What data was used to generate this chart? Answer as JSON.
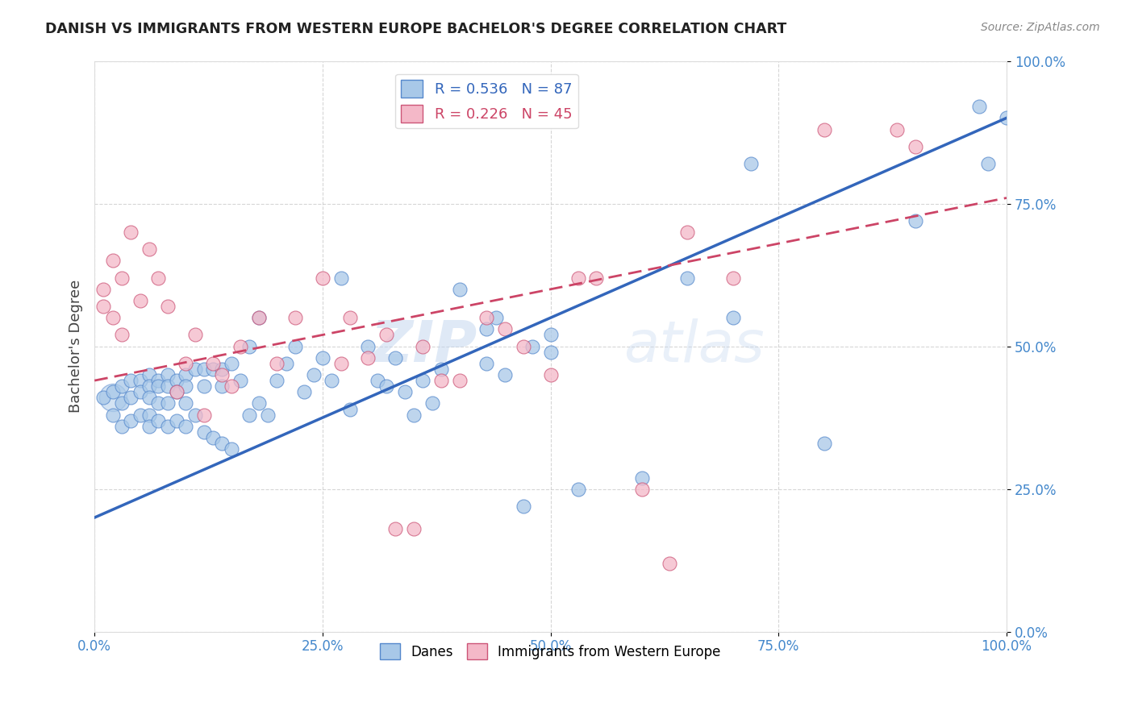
{
  "title": "DANISH VS IMMIGRANTS FROM WESTERN EUROPE BACHELOR'S DEGREE CORRELATION CHART",
  "source": "Source: ZipAtlas.com",
  "ylabel": "Bachelor's Degree",
  "xlim": [
    0,
    1
  ],
  "ylim": [
    0,
    1
  ],
  "xticks": [
    0.0,
    0.25,
    0.5,
    0.75,
    1.0
  ],
  "yticks": [
    0.0,
    0.25,
    0.5,
    0.75,
    1.0
  ],
  "xtick_labels": [
    "0.0%",
    "25.0%",
    "50.0%",
    "75.0%",
    "100.0%"
  ],
  "ytick_labels": [
    "0.0%",
    "25.0%",
    "50.0%",
    "75.0%",
    "100.0%"
  ],
  "blue_face_color": "#a8c8e8",
  "blue_edge_color": "#5588cc",
  "pink_face_color": "#f4b8c8",
  "pink_edge_color": "#cc5577",
  "blue_line_color": "#3366bb",
  "pink_line_color": "#cc4466",
  "blue_R": 0.536,
  "blue_N": 87,
  "pink_R": 0.226,
  "pink_N": 45,
  "legend1_label": "Danes",
  "legend2_label": "Immigrants from Western Europe",
  "watermark_zip": "ZIP",
  "watermark_atlas": "atlas",
  "blue_line_x0": 0.0,
  "blue_line_y0": 0.2,
  "blue_line_x1": 1.0,
  "blue_line_y1": 0.9,
  "pink_line_x0": 0.0,
  "pink_line_y0": 0.44,
  "pink_line_x1": 1.0,
  "pink_line_y1": 0.76,
  "blue_scatter_x": [
    0.01,
    0.02,
    0.02,
    0.03,
    0.03,
    0.03,
    0.04,
    0.04,
    0.04,
    0.05,
    0.05,
    0.05,
    0.06,
    0.06,
    0.06,
    0.06,
    0.06,
    0.07,
    0.07,
    0.07,
    0.07,
    0.08,
    0.08,
    0.08,
    0.08,
    0.09,
    0.09,
    0.09,
    0.1,
    0.1,
    0.1,
    0.1,
    0.11,
    0.11,
    0.12,
    0.12,
    0.12,
    0.13,
    0.13,
    0.14,
    0.14,
    0.14,
    0.15,
    0.15,
    0.16,
    0.17,
    0.17,
    0.18,
    0.18,
    0.19,
    0.2,
    0.21,
    0.22,
    0.23,
    0.24,
    0.25,
    0.26,
    0.27,
    0.28,
    0.3,
    0.31,
    0.32,
    0.33,
    0.34,
    0.35,
    0.36,
    0.37,
    0.38,
    0.4,
    0.43,
    0.43,
    0.44,
    0.45,
    0.47,
    0.48,
    0.5,
    0.5,
    0.53,
    0.6,
    0.65,
    0.7,
    0.72,
    0.8,
    0.9,
    0.97,
    0.98,
    1.0
  ],
  "blue_scatter_y": [
    0.41,
    0.42,
    0.38,
    0.43,
    0.4,
    0.36,
    0.44,
    0.41,
    0.37,
    0.44,
    0.42,
    0.38,
    0.45,
    0.43,
    0.41,
    0.38,
    0.36,
    0.44,
    0.43,
    0.4,
    0.37,
    0.45,
    0.43,
    0.4,
    0.36,
    0.44,
    0.42,
    0.37,
    0.45,
    0.43,
    0.4,
    0.36,
    0.46,
    0.38,
    0.46,
    0.43,
    0.35,
    0.46,
    0.34,
    0.46,
    0.43,
    0.33,
    0.47,
    0.32,
    0.44,
    0.5,
    0.38,
    0.55,
    0.4,
    0.38,
    0.44,
    0.47,
    0.5,
    0.42,
    0.45,
    0.48,
    0.44,
    0.62,
    0.39,
    0.5,
    0.44,
    0.43,
    0.48,
    0.42,
    0.38,
    0.44,
    0.4,
    0.46,
    0.6,
    0.53,
    0.47,
    0.55,
    0.45,
    0.22,
    0.5,
    0.52,
    0.49,
    0.25,
    0.27,
    0.62,
    0.55,
    0.82,
    0.33,
    0.72,
    0.92,
    0.82,
    0.9
  ],
  "pink_scatter_x": [
    0.01,
    0.01,
    0.02,
    0.02,
    0.03,
    0.03,
    0.04,
    0.05,
    0.06,
    0.07,
    0.08,
    0.09,
    0.1,
    0.11,
    0.12,
    0.13,
    0.14,
    0.15,
    0.16,
    0.18,
    0.2,
    0.22,
    0.25,
    0.27,
    0.28,
    0.3,
    0.32,
    0.33,
    0.35,
    0.36,
    0.38,
    0.4,
    0.43,
    0.45,
    0.47,
    0.5,
    0.53,
    0.55,
    0.6,
    0.63,
    0.65,
    0.7,
    0.8,
    0.88,
    0.9
  ],
  "pink_scatter_y": [
    0.6,
    0.57,
    0.65,
    0.55,
    0.62,
    0.52,
    0.7,
    0.58,
    0.67,
    0.62,
    0.57,
    0.42,
    0.47,
    0.52,
    0.38,
    0.47,
    0.45,
    0.43,
    0.5,
    0.55,
    0.47,
    0.55,
    0.62,
    0.47,
    0.55,
    0.48,
    0.52,
    0.18,
    0.18,
    0.5,
    0.44,
    0.44,
    0.55,
    0.53,
    0.5,
    0.45,
    0.62,
    0.62,
    0.25,
    0.12,
    0.7,
    0.62,
    0.88,
    0.88,
    0.85
  ]
}
